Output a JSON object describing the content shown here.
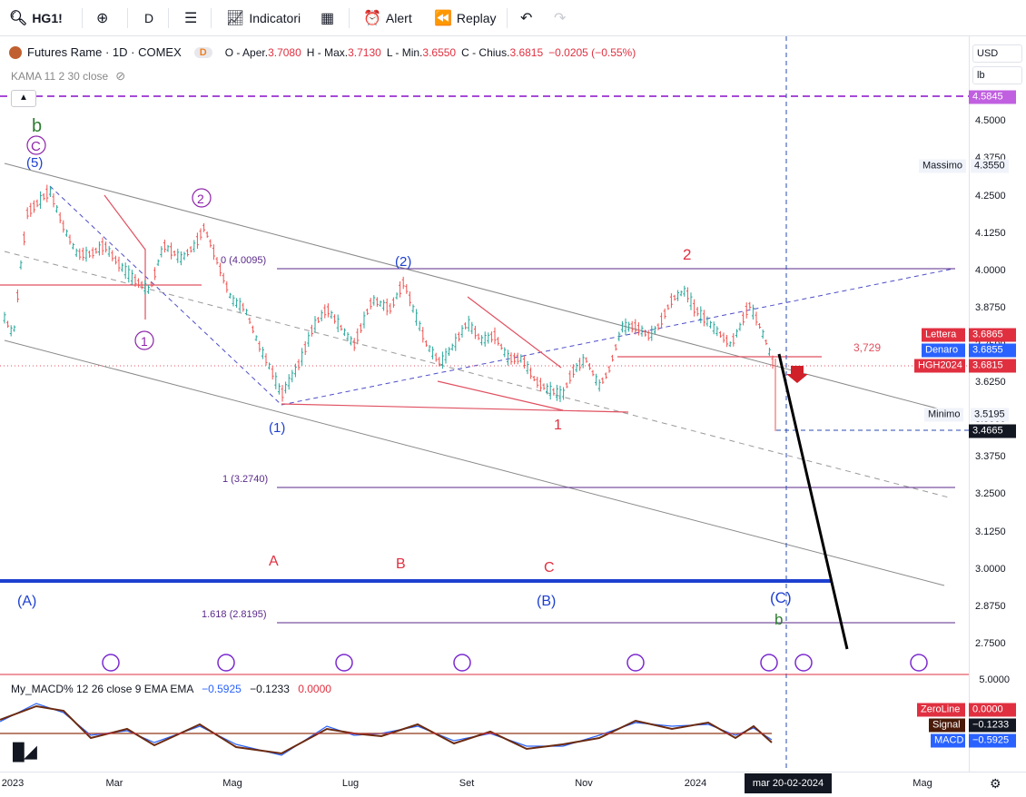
{
  "toolbar": {
    "symbol": "HG1!",
    "interval": "D",
    "indicators_label": "Indicatori",
    "alert_label": "Alert",
    "replay_label": "Replay"
  },
  "legend": {
    "title": "Futures Rame · 1D · COMEX",
    "status": "D",
    "o_label": "O - Aper.",
    "o_value": "3.7080",
    "h_label": "H - Max.",
    "h_value": "3.7130",
    "l_label": "L - Min.",
    "l_value": "3.6550",
    "c_label": "C - Chius.",
    "c_value": "3.6815",
    "change": "−0.0205 (−0.55%)",
    "kama": "KAMA 11 2 30 close"
  },
  "macd_legend": {
    "name": "My_MACD% 12 26 close 9 EMA EMA",
    "v1": "−0.5925",
    "v2": "−0.1233",
    "v3": "0.0000"
  },
  "currency": {
    "unit": "USD",
    "measure": "lb"
  },
  "price_ticks": [
    "4.5000",
    "4.3750",
    "4.2500",
    "4.1250",
    "4.0000",
    "3.8750",
    "3.7500",
    "3.6250",
    "3.5000",
    "3.3750",
    "3.2500",
    "3.1250",
    "3.0000",
    "2.8750",
    "2.7500"
  ],
  "macd_tick": "5.0000",
  "price_labels": {
    "top": "4.5845",
    "massimo_label": "Massimo",
    "massimo_value": "4.3550",
    "lettera_label": "Lettera",
    "lettera_value": "3.6865",
    "denaro_label": "Denaro",
    "denaro_value": "3.6855",
    "hgh_label": "HGH2024",
    "hgh_value": "3.6815",
    "minimo_label": "Minimo",
    "minimo_value": "3.5195",
    "cursor_value": "3.4665"
  },
  "macd_labels": {
    "zeroline_label": "ZeroLine",
    "zeroline_value": "0.0000",
    "signal_label": "Signal",
    "signal_value": "−0.1233",
    "macd_label": "MACD",
    "macd_value": "−0.5925"
  },
  "time_labels": [
    "2023",
    "Mar",
    "Mag",
    "Lug",
    "Set",
    "Nov",
    "2024",
    "Mag"
  ],
  "time_cursor": "mar 20-02-2024",
  "annotations": {
    "fib0": "0 (4.0095)",
    "fib1": "1 (3.2740)",
    "fib1618": "1.618 (2.8195)",
    "level_3729": "3,729",
    "wave_b_top": "b",
    "wave_C_top": "C",
    "wave_5": "(5)",
    "wave_1_circ": "1",
    "wave_2_circ": "2",
    "wave_1_paren": "(1)",
    "wave_2_paren": "(2)",
    "red_1": "1",
    "red_2": "2",
    "A_red": "A",
    "B_red": "B",
    "C_red": "C",
    "A_blue": "(A)",
    "B_blue": "(B)",
    "C_blue": "(C)",
    "b_green_bottom": "b"
  }
}
